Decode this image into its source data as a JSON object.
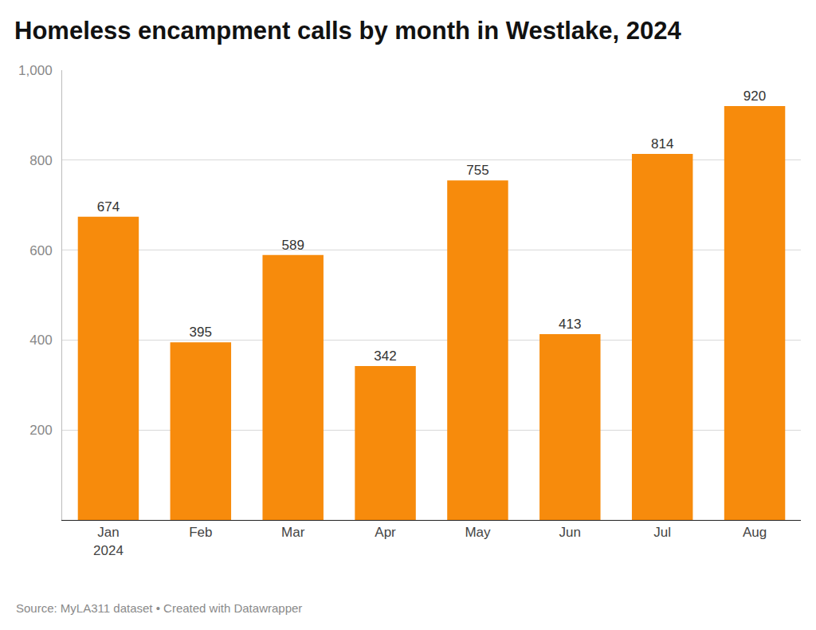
{
  "chart_data": {
    "type": "bar",
    "title": "Homeless encampment calls by month in Westlake, 2024",
    "categories": [
      "Jan\n2024",
      "Feb",
      "Mar",
      "Apr",
      "May",
      "Jun",
      "Jul",
      "Aug"
    ],
    "values": [
      674,
      395,
      589,
      342,
      755,
      413,
      814,
      920
    ],
    "color": "#f78b0c",
    "ylim": [
      0,
      1000
    ],
    "yticks": [
      200,
      400,
      600,
      800,
      {
        "value": 1000,
        "label": "1,000"
      }
    ],
    "grid": true,
    "data_labels": true,
    "annotations": [
      "Source: MyLA311 dataset • Created with Datawrapper"
    ]
  }
}
